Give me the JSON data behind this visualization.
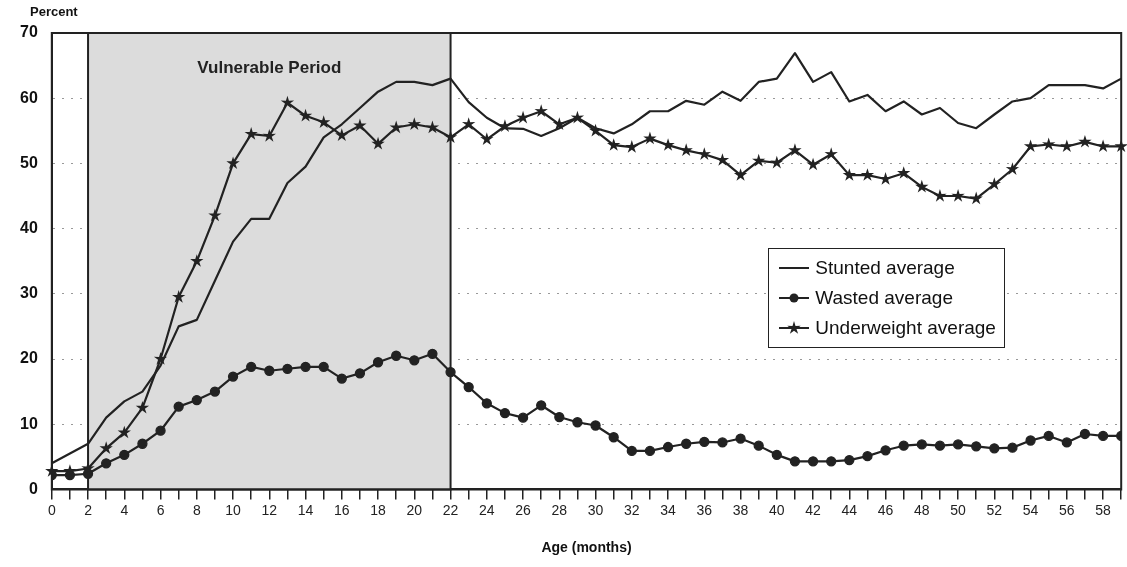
{
  "chart_data": {
    "type": "line",
    "xlabel": "Age (months)",
    "ylabel": "Percent",
    "x": [
      0,
      1,
      2,
      3,
      4,
      5,
      6,
      7,
      8,
      9,
      10,
      11,
      12,
      13,
      14,
      15,
      16,
      17,
      18,
      19,
      20,
      21,
      22,
      23,
      24,
      25,
      26,
      27,
      28,
      29,
      30,
      31,
      32,
      33,
      34,
      35,
      36,
      37,
      38,
      39,
      40,
      41,
      42,
      43,
      44,
      45,
      46,
      47,
      48,
      49,
      50,
      51,
      52,
      53,
      54,
      55,
      56,
      57,
      58,
      59
    ],
    "series": [
      {
        "name": "Stunted average",
        "color": "#222222",
        "marker": "none",
        "values": [
          4,
          5.5,
          7,
          11,
          13.5,
          15,
          19,
          25,
          26,
          32,
          38,
          41.5,
          41.5,
          47,
          49.5,
          54,
          56,
          58.5,
          61,
          62.5,
          62.5,
          62,
          63,
          59.4,
          57,
          55.4,
          55.3,
          54.2,
          55.4,
          57,
          55.4,
          54.6,
          56,
          58,
          58,
          59.6,
          59,
          61,
          59.6,
          62.5,
          63,
          66.9,
          62.5,
          64,
          59.5,
          60.5,
          58,
          59.5,
          57.5,
          58.5,
          56.2,
          55.4,
          57.5,
          59.5,
          60,
          62,
          62,
          62,
          61.5,
          63
        ]
      },
      {
        "name": "Wasted average",
        "color": "#222222",
        "marker": "circle",
        "values": [
          2.2,
          2.2,
          2.4,
          4,
          5.3,
          7,
          9,
          12.7,
          13.7,
          15,
          17.3,
          18.8,
          18.2,
          18.5,
          18.8,
          18.8,
          17,
          17.8,
          19.5,
          20.5,
          19.8,
          20.8,
          18,
          15.7,
          13.2,
          11.7,
          11,
          12.9,
          11.1,
          10.3,
          9.8,
          8,
          5.9,
          5.9,
          6.5,
          7,
          7.3,
          7.2,
          7.8,
          6.7,
          5.3,
          4.3,
          4.3,
          4.3,
          4.5,
          5.1,
          6,
          6.7,
          6.9,
          6.7,
          6.9,
          6.6,
          6.3,
          6.4,
          7.5,
          8.2,
          7.2,
          8.5,
          8.2,
          8.2
        ]
      },
      {
        "name": "Underweight average",
        "color": "#222222",
        "marker": "star",
        "values": [
          2.8,
          2.8,
          3.2,
          6.3,
          8.7,
          12.5,
          20,
          29.5,
          35,
          42,
          50,
          54.5,
          54.2,
          59.3,
          57.3,
          56.3,
          54.3,
          55.8,
          53,
          55.5,
          56,
          55.5,
          54,
          56,
          53.7,
          55.7,
          57,
          58,
          56,
          57,
          55,
          52.8,
          52.5,
          53.8,
          52.8,
          52,
          51.4,
          50.5,
          48.2,
          50.4,
          50.1,
          52,
          49.8,
          51.4,
          48.2,
          48.2,
          47.6,
          48.5,
          46.4,
          45,
          45,
          44.6,
          46.8,
          49.1,
          52.6,
          52.9,
          52.6,
          53.3,
          52.6,
          52.6
        ]
      }
    ],
    "xlim": [
      0,
      59
    ],
    "xticks": [
      0,
      {
        "value": 1,
        "label": null
      },
      2,
      {
        "value": 3,
        "label": null
      },
      4,
      {
        "value": 5,
        "label": null
      },
      6,
      {
        "value": 7,
        "label": null
      },
      8,
      {
        "value": 9,
        "label": null
      },
      10,
      {
        "value": 11,
        "label": null
      },
      12,
      {
        "value": 13,
        "label": null
      },
      14,
      {
        "value": 15,
        "label": null
      },
      16,
      {
        "value": 17,
        "label": null
      },
      18,
      {
        "value": 19,
        "label": null
      },
      20,
      {
        "value": 21,
        "label": null
      },
      22,
      {
        "value": 23,
        "label": null
      },
      24,
      {
        "value": 25,
        "label": null
      },
      26,
      {
        "value": 27,
        "label": null
      },
      28,
      {
        "value": 29,
        "label": null
      },
      30,
      {
        "value": 31,
        "label": null
      },
      32,
      {
        "value": 33,
        "label": null
      },
      34,
      {
        "value": 35,
        "label": null
      },
      36,
      {
        "value": 37,
        "label": null
      },
      38,
      {
        "value": 39,
        "label": null
      },
      40,
      {
        "value": 41,
        "label": null
      },
      42,
      {
        "value": 43,
        "label": null
      },
      44,
      {
        "value": 45,
        "label": null
      },
      46,
      {
        "value": 47,
        "label": null
      },
      48,
      {
        "value": 49,
        "label": null
      },
      50,
      {
        "value": 51,
        "label": null
      },
      52,
      {
        "value": 53,
        "label": null
      },
      54,
      {
        "value": 55,
        "label": null
      },
      56,
      {
        "value": 57,
        "label": null
      },
      58,
      {
        "value": 59,
        "label": null
      }
    ],
    "ylim": [
      0,
      70
    ],
    "yticks": [
      0,
      10,
      20,
      30,
      40,
      50,
      60,
      70
    ],
    "bands": [
      {
        "axis": "x",
        "from": 2,
        "to": 22,
        "label": "Vulnerable Period",
        "color": "#dcdcdc"
      }
    ],
    "grid": "y",
    "legend": "right"
  }
}
